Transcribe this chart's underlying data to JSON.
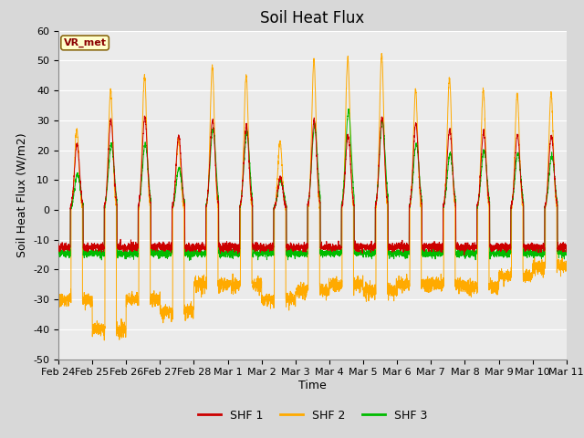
{
  "title": "Soil Heat Flux",
  "xlabel": "Time",
  "ylabel": "Soil Heat Flux (W/m2)",
  "ylim": [
    -50,
    60
  ],
  "yticks": [
    -50,
    -40,
    -30,
    -20,
    -10,
    0,
    10,
    20,
    30,
    40,
    50,
    60
  ],
  "xtick_labels": [
    "Feb 24",
    "Feb 25",
    "Feb 26",
    "Feb 27",
    "Feb 28",
    "Mar 1",
    "Mar 2",
    "Mar 3",
    "Mar 4",
    "Mar 5",
    "Mar 6",
    "Mar 7",
    "Mar 8",
    "Mar 9",
    "Mar 10",
    "Mar 11"
  ],
  "shf1_color": "#cc0000",
  "shf2_color": "#ffaa00",
  "shf3_color": "#00bb00",
  "legend_labels": [
    "SHF 1",
    "SHF 2",
    "SHF 3"
  ],
  "annotation_text": "VR_met",
  "bg_color": "#d8d8d8",
  "plot_bg_color": "#ebebeb",
  "grid_color": "#ffffff",
  "title_fontsize": 12,
  "axis_label_fontsize": 9,
  "tick_fontsize": 8,
  "num_days": 15,
  "points_per_day": 288
}
